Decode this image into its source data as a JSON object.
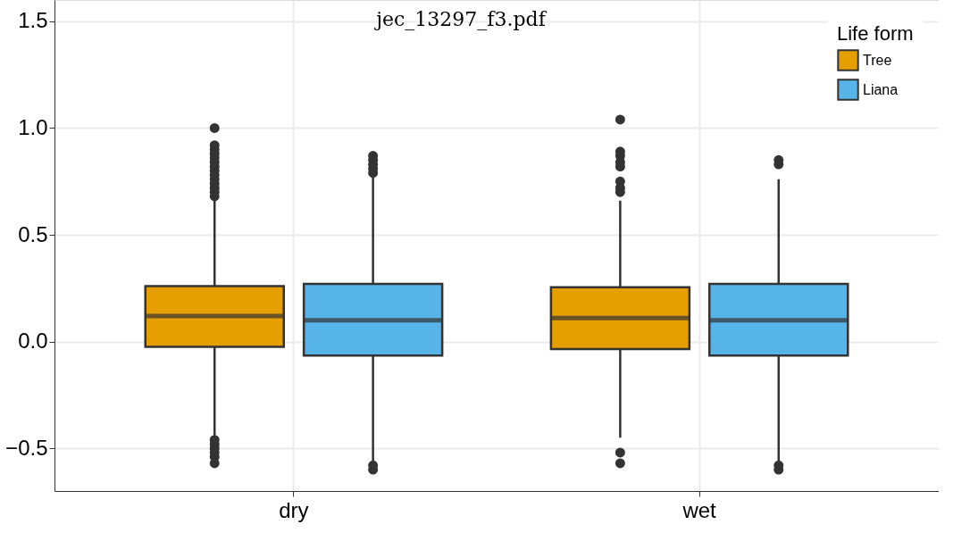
{
  "chart_data": {
    "type": "box",
    "annotations": [
      "jec_13297_f3.pdf"
    ],
    "legend_title": "Life form",
    "categories": [
      "dry",
      "wet"
    ],
    "series": [
      {
        "name": "Tree",
        "color": "#e69f00",
        "boxes": [
          {
            "low": -0.44,
            "q1": -0.025,
            "median": 0.12,
            "q3": 0.26,
            "high": 0.66,
            "outliers": [
              0.68,
              0.7,
              0.72,
              0.74,
              0.76,
              0.78,
              0.8,
              0.82,
              0.84,
              0.86,
              0.88,
              0.9,
              0.92,
              1.0,
              -0.46,
              -0.48,
              -0.5,
              -0.52,
              -0.54,
              -0.57
            ]
          },
          {
            "low": -0.45,
            "q1": -0.035,
            "median": 0.11,
            "q3": 0.255,
            "high": 0.66,
            "outliers": [
              0.7,
              0.72,
              0.75,
              0.82,
              0.84,
              0.87,
              0.89,
              1.04,
              -0.52,
              -0.57
            ]
          }
        ]
      },
      {
        "name": "Liana",
        "color": "#56b4e9",
        "boxes": [
          {
            "low": -0.56,
            "q1": -0.065,
            "median": 0.1,
            "q3": 0.27,
            "high": 0.77,
            "outliers": [
              0.79,
              0.81,
              0.83,
              0.85,
              0.87,
              -0.58,
              -0.6
            ]
          },
          {
            "low": -0.57,
            "q1": -0.065,
            "median": 0.1,
            "q3": 0.27,
            "high": 0.76,
            "outliers": [
              0.83,
              0.85,
              -0.58,
              -0.6
            ]
          }
        ]
      }
    ],
    "ylim": [
      -0.7,
      1.6
    ],
    "yticks": [
      -0.5,
      {
        "value": 0,
        "label": "0.0"
      },
      0.5,
      {
        "value": 1,
        "label": "1.0"
      },
      1.5
    ],
    "grid": true,
    "legend": "top right"
  }
}
